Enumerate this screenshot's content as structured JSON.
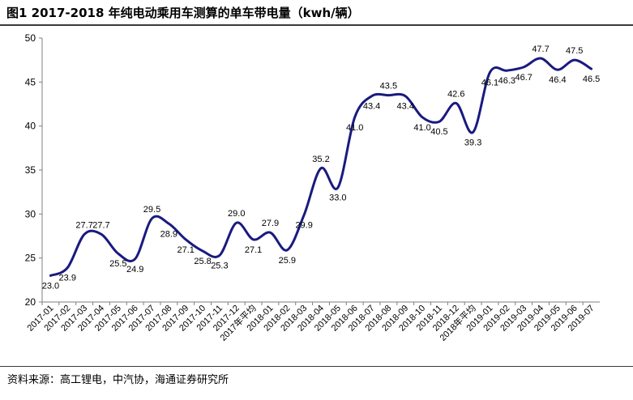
{
  "header": {
    "title": "图1  2017-2018 年纯电动乘用车测算的单车带电量（kwh/辆）"
  },
  "footer": {
    "source": "资料来源：高工锂电，中汽协，海通证券研究所"
  },
  "chart_data": {
    "type": "line",
    "title": "图1  2017-2018 年纯电动乘用车测算的单车带电量（kwh/辆）",
    "xlabel": "",
    "ylabel": "",
    "ylim": [
      20,
      50
    ],
    "yticks": [
      20,
      25,
      30,
      35,
      40,
      45,
      50
    ],
    "grid": false,
    "legend": "none",
    "line_color": "#1a1a80",
    "smooth": true,
    "categories": [
      "2017-01",
      "2017-02",
      "2017-03",
      "2017-04",
      "2017-05",
      "2017-06",
      "2017-07",
      "2017-08",
      "2017-09",
      "2017-10",
      "2017-11",
      "2017-12",
      "2017年平均",
      "2018-01",
      "2018-02",
      "2018-03",
      "2018-04",
      "2018-05",
      "2018-06",
      "2018-07",
      "2018-08",
      "2018-09",
      "2018-10",
      "2018-11",
      "2018-12",
      "2018年平均",
      "2019-01",
      "2019-02",
      "2019-03",
      "2019-04",
      "2019-05",
      "2019-06",
      "2019-07"
    ],
    "series": [
      {
        "values": [
          23.0,
          23.9,
          27.7,
          27.7,
          25.5,
          24.9,
          29.5,
          28.9,
          27.1,
          25.8,
          25.3,
          29.0,
          27.1,
          27.9,
          25.9,
          29.9,
          35.2,
          33.0,
          41.0,
          43.4,
          43.5,
          43.4,
          41.0,
          40.5,
          42.6,
          39.3,
          46.1,
          46.3,
          46.7,
          47.7,
          46.4,
          47.5,
          46.5
        ],
        "labels": [
          "23.0",
          "23.9",
          "27.7",
          "27.7",
          "25.5",
          "24.9",
          "29.5",
          "28.9",
          "27.1",
          "25.8",
          "25.3",
          "29.0",
          "27.1",
          "27.9",
          "25.9",
          "29.9",
          "35.2",
          "33.0",
          "41.0",
          "43.4",
          "43.5",
          "43.4",
          "41.0",
          "40.5",
          "42.6",
          "39.3",
          "46.1",
          "46.3",
          "46.7",
          "47.7",
          "46.4",
          "47.5",
          "46.5"
        ]
      }
    ]
  }
}
